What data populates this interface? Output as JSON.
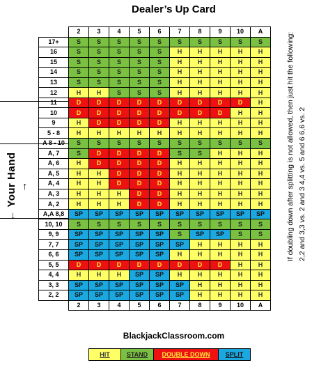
{
  "title": "Dealer’s Up Card",
  "dealer_cards": [
    "2",
    "3",
    "4",
    "5",
    "6",
    "7",
    "8",
    "9",
    "10",
    "A"
  ],
  "rows": [
    {
      "label": "17+",
      "cells": [
        "S",
        "S",
        "S",
        "S",
        "S",
        "S",
        "S",
        "S",
        "S",
        "S"
      ]
    },
    {
      "label": "16",
      "cells": [
        "S",
        "S",
        "S",
        "S",
        "S",
        "H",
        "H",
        "H",
        "H",
        "H"
      ]
    },
    {
      "label": "15",
      "cells": [
        "S",
        "S",
        "S",
        "S",
        "S",
        "H",
        "H",
        "H",
        "H",
        "H"
      ]
    },
    {
      "label": "14",
      "cells": [
        "S",
        "S",
        "S",
        "S",
        "S",
        "H",
        "H",
        "H",
        "H",
        "H"
      ]
    },
    {
      "label": "13",
      "cells": [
        "S",
        "S",
        "S",
        "S",
        "S",
        "H",
        "H",
        "H",
        "H",
        "H"
      ]
    },
    {
      "label": "12",
      "cells": [
        "H",
        "H",
        "S",
        "S",
        "S",
        "H",
        "H",
        "H",
        "H",
        "H"
      ]
    },
    {
      "label": "11",
      "cells": [
        "D",
        "D",
        "D",
        "D",
        "D",
        "D",
        "D",
        "D",
        "D",
        "H"
      ]
    },
    {
      "label": "10",
      "cells": [
        "D",
        "D",
        "D",
        "D",
        "D",
        "D",
        "D",
        "D",
        "H",
        "H"
      ]
    },
    {
      "label": "9",
      "cells": [
        "H",
        "D",
        "D",
        "D",
        "D",
        "H",
        "H",
        "H",
        "H",
        "H"
      ]
    },
    {
      "label": "5 - 8",
      "cells": [
        "H",
        "H",
        "H",
        "H",
        "H",
        "H",
        "H",
        "H",
        "H",
        "H"
      ]
    },
    {
      "label": "A 8 - 10",
      "cells": [
        "S",
        "S",
        "S",
        "S",
        "S",
        "S",
        "S",
        "S",
        "S",
        "S"
      ]
    },
    {
      "label": "A, 7",
      "cells": [
        "S",
        "D",
        "D",
        "D",
        "D",
        "S",
        "S",
        "H",
        "H",
        "H"
      ]
    },
    {
      "label": "A, 6",
      "cells": [
        "H",
        "D",
        "D",
        "D",
        "D",
        "H",
        "H",
        "H",
        "H",
        "H"
      ]
    },
    {
      "label": "A, 5",
      "cells": [
        "H",
        "H",
        "D",
        "D",
        "D",
        "H",
        "H",
        "H",
        "H",
        "H"
      ]
    },
    {
      "label": "A, 4",
      "cells": [
        "H",
        "H",
        "D",
        "D",
        "D",
        "H",
        "H",
        "H",
        "H",
        "H"
      ]
    },
    {
      "label": "A, 3",
      "cells": [
        "H",
        "H",
        "H",
        "D",
        "D",
        "H",
        "H",
        "H",
        "H",
        "H"
      ]
    },
    {
      "label": "A, 2",
      "cells": [
        "H",
        "H",
        "H",
        "D",
        "D",
        "H",
        "H",
        "H",
        "H",
        "H"
      ]
    },
    {
      "label": "A,A 8,8",
      "cells": [
        "SP",
        "SP",
        "SP",
        "SP",
        "SP",
        "SP",
        "SP",
        "SP",
        "SP",
        "SP"
      ]
    },
    {
      "label": "10, 10",
      "cells": [
        "S",
        "S",
        "S",
        "S",
        "S",
        "S",
        "S",
        "S",
        "S",
        "S"
      ]
    },
    {
      "label": "9, 9",
      "cells": [
        "SP",
        "SP",
        "SP",
        "SP",
        "SP",
        "S",
        "SP",
        "SP",
        "S",
        "S"
      ]
    },
    {
      "label": "7, 7",
      "cells": [
        "SP",
        "SP",
        "SP",
        "SP",
        "SP",
        "SP",
        "H",
        "H",
        "H",
        "H"
      ]
    },
    {
      "label": "6, 6",
      "cells": [
        "SP",
        "SP",
        "SP",
        "SP",
        "SP",
        "H",
        "H",
        "H",
        "H",
        "H"
      ]
    },
    {
      "label": "5, 5",
      "cells": [
        "D",
        "D",
        "D",
        "D",
        "D",
        "D",
        "D",
        "D",
        "H",
        "H"
      ]
    },
    {
      "label": "4, 4",
      "cells": [
        "H",
        "H",
        "H",
        "SP",
        "SP",
        "H",
        "H",
        "H",
        "H",
        "H"
      ]
    },
    {
      "label": "3, 3",
      "cells": [
        "SP",
        "SP",
        "SP",
        "SP",
        "SP",
        "SP",
        "H",
        "H",
        "H",
        "H"
      ]
    },
    {
      "label": "2, 2",
      "cells": [
        "SP",
        "SP",
        "SP",
        "SP",
        "SP",
        "SP",
        "H",
        "H",
        "H",
        "H"
      ]
    }
  ],
  "side_label": "← Your Hand →",
  "side_note": {
    "line1": "If doubling down after splitting is not allowed, then just hit the following:",
    "line2": "2,2 and 3,3 vs. 2 and 3     4,4 vs. 5 and 6     6,6 vs. 2"
  },
  "website": "BlackjackClassroom.com",
  "legend": [
    {
      "label": "HIT",
      "color": "#ffff66",
      "text_color": "#333333"
    },
    {
      "label": "STAND",
      "color": "#7ac142",
      "text_color": "#222222"
    },
    {
      "label": "DOUBLE DOWN",
      "color": "#ee1111",
      "text_color": "#ffeb3b"
    },
    {
      "label": "SPLIT",
      "color": "#1ba8e0",
      "text_color": "#111111"
    }
  ]
}
